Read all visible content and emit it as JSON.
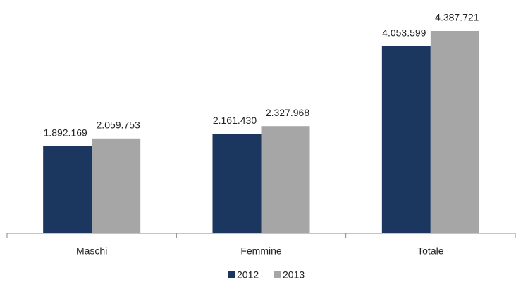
{
  "chart_data": {
    "type": "bar",
    "categories": [
      "Maschi",
      "Femmine",
      "Totale"
    ],
    "series": [
      {
        "name": "2012",
        "color": "#1b365f",
        "values": [
          1892169,
          2161430,
          4053599
        ],
        "value_labels": [
          "1.892.169",
          "2.161.430",
          "4.053.599"
        ]
      },
      {
        "name": "2013",
        "color": "#a6a6a6",
        "values": [
          2059753,
          2327968,
          4387721
        ],
        "value_labels": [
          "2.059.753",
          "2.327.968",
          "4.387.721"
        ]
      }
    ],
    "legend": "bottom"
  }
}
